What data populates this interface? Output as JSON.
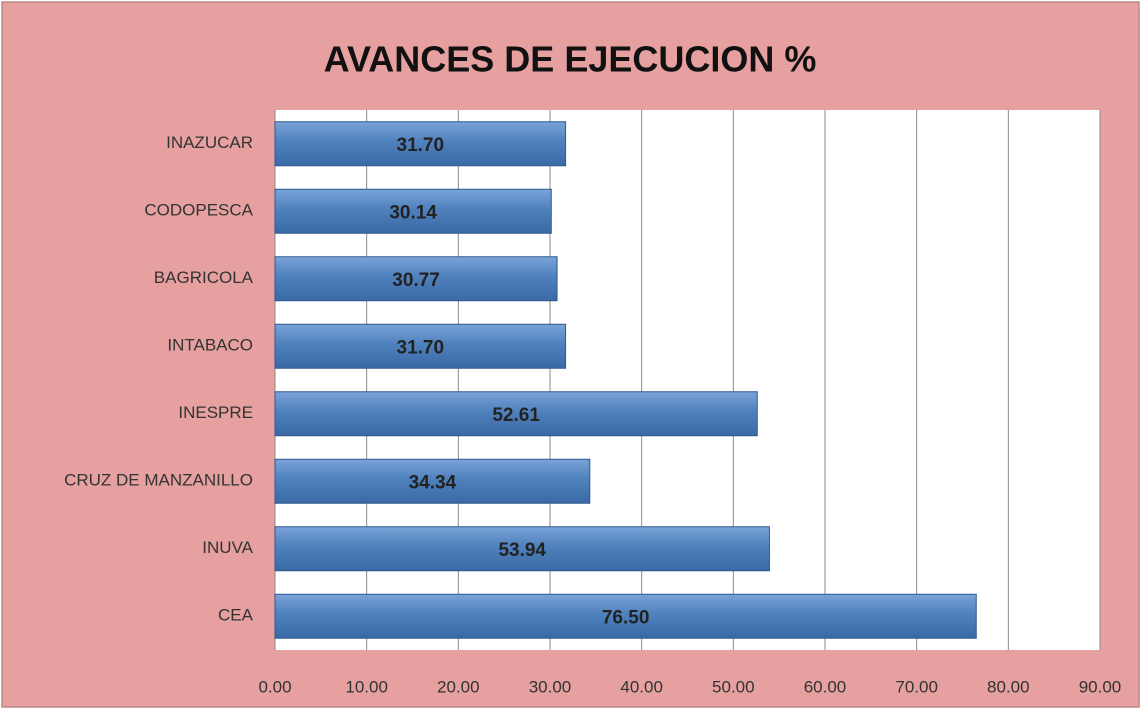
{
  "chart_data": {
    "type": "bar",
    "orientation": "horizontal",
    "title": "AVANCES DE EJECUCION %",
    "categories": [
      "INAZUCAR",
      "CODOPESCA",
      "BAGRICOLA",
      "INTABACO",
      "INESPRE",
      "CRUZ DE MANZANILLO",
      "INUVA",
      "CEA"
    ],
    "values": [
      31.7,
      30.14,
      30.77,
      31.7,
      52.61,
      34.34,
      53.94,
      76.5
    ],
    "value_labels": [
      "31.70",
      "30.14",
      "30.77",
      "31.70",
      "52.61",
      "34.34",
      "53.94",
      "76.50"
    ],
    "color": "#4f81bd",
    "xlim": [
      0,
      90
    ],
    "xticks": [
      {
        "value": 0,
        "label": "0.00"
      },
      {
        "value": 10,
        "label": "10.00"
      },
      {
        "value": 20,
        "label": "20.00"
      },
      {
        "value": 30,
        "label": "30.00"
      },
      {
        "value": 40,
        "label": "40.00"
      },
      {
        "value": 50,
        "label": "50.00"
      },
      {
        "value": 60,
        "label": "60.00"
      },
      {
        "value": 70,
        "label": "70.00"
      },
      {
        "value": 80,
        "label": "80.00"
      },
      {
        "value": 90,
        "label": "90.00"
      }
    ],
    "grid": true
  }
}
